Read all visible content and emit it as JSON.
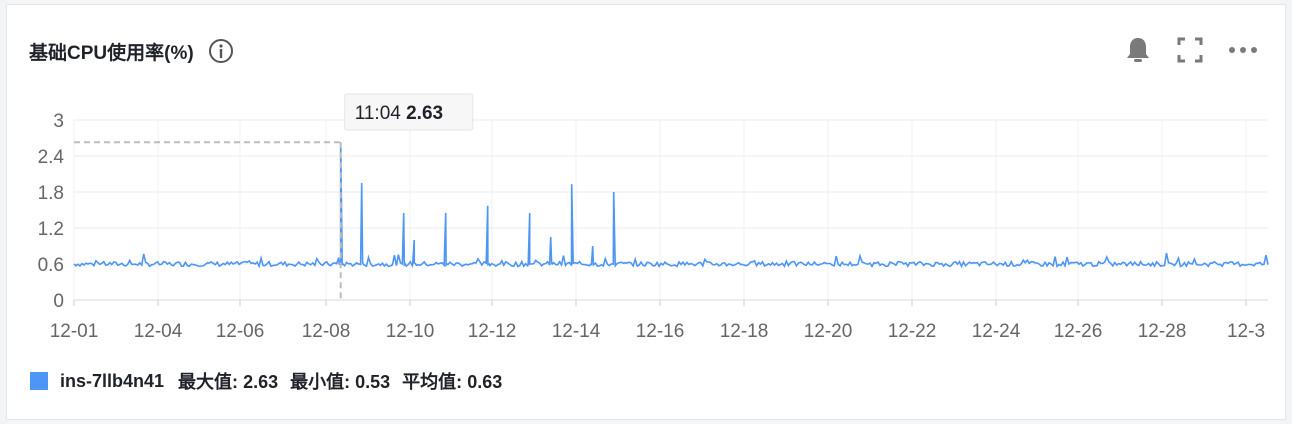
{
  "widget": {
    "title": "基础CPU使用率(%)",
    "info_icon": "info-circle-icon",
    "tools": [
      {
        "name": "bell-icon"
      },
      {
        "name": "fullscreen-icon"
      },
      {
        "name": "more-icon"
      }
    ]
  },
  "tooltip": {
    "time": "11:04",
    "value": "2.63"
  },
  "legend": {
    "series_name": "ins-7llb4n41",
    "max_label": "最大值:",
    "max_value": "2.63",
    "min_label": "最小值:",
    "min_value": "0.53",
    "avg_label": "平均值:",
    "avg_value": "0.63",
    "color": "#4e96f5"
  },
  "chart_data": {
    "type": "line",
    "title": "",
    "xlabel": "",
    "ylabel": "",
    "ylim": [
      0,
      3
    ],
    "y_ticks": [
      "0",
      "0.6",
      "1.2",
      "1.8",
      "2.4",
      "3"
    ],
    "x_ticks": [
      "12-01",
      "12-04",
      "12-06",
      "12-08",
      "12-10",
      "12-12",
      "12-14",
      "12-16",
      "12-18",
      "12-20",
      "12-22",
      "12-24",
      "12-26",
      "12-28",
      "12-3"
    ],
    "grid": true,
    "baseline": 0.6,
    "spikes": [
      {
        "day": 7.35,
        "value": 2.63
      },
      {
        "day": 7.85,
        "value": 1.95
      },
      {
        "day": 8.85,
        "value": 1.45
      },
      {
        "day": 9.1,
        "value": 1.0
      },
      {
        "day": 9.85,
        "value": 1.45
      },
      {
        "day": 10.85,
        "value": 1.57
      },
      {
        "day": 11.85,
        "value": 1.45
      },
      {
        "day": 12.35,
        "value": 1.05
      },
      {
        "day": 12.85,
        "value": 1.93
      },
      {
        "day": 13.35,
        "value": 0.9
      },
      {
        "day": 13.85,
        "value": 1.8
      }
    ],
    "series": [
      {
        "name": "ins-7llb4n41",
        "color": "#4e96f5"
      }
    ],
    "highlight": {
      "time": "11:04",
      "value": 2.63
    }
  }
}
